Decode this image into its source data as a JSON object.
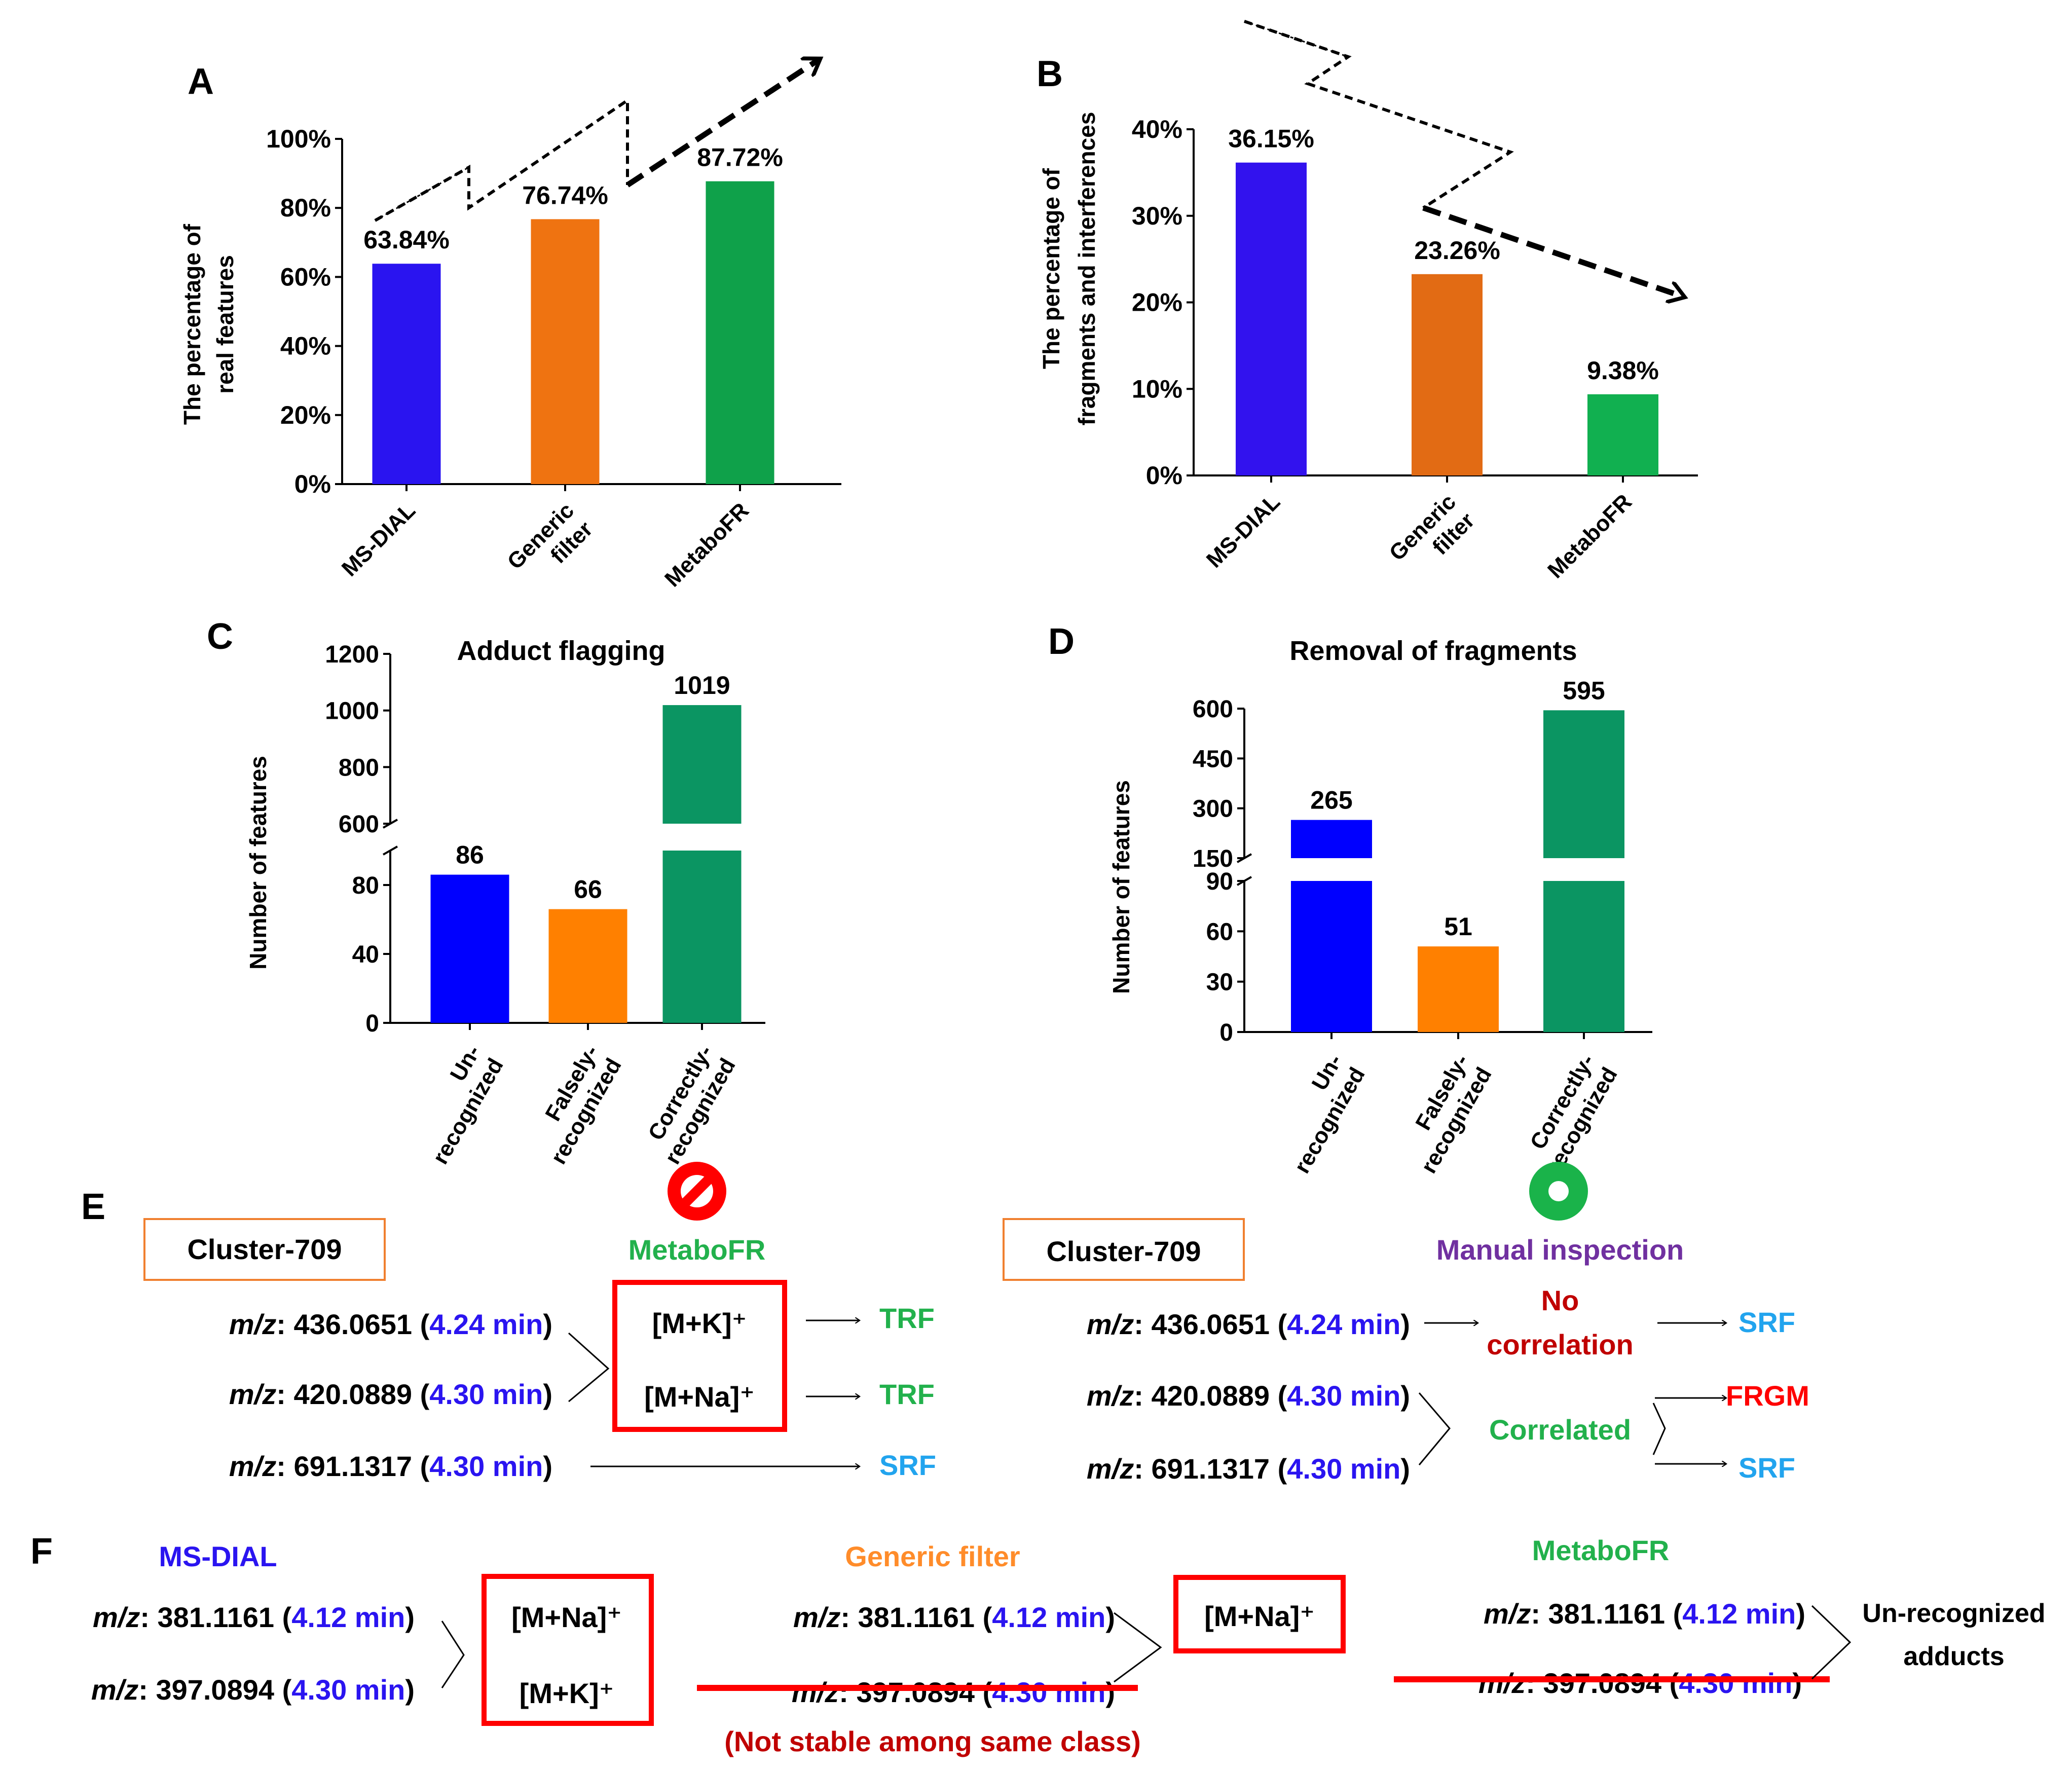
{
  "colors": {
    "blue": "#2a14f0",
    "orange": "#ef7311",
    "green": "#0fa14a",
    "dark_green": "#0b9562",
    "red": "#ff0000",
    "dark_red": "#c00000",
    "light_blue": "#22a4ee",
    "purple": "#7030a0",
    "text_green": "#22b14c",
    "orange_text": "#ff8c2a",
    "box_orange": "#f08030"
  },
  "chart_data": [
    {
      "panel": "A",
      "type": "bar",
      "ylabel_lines": [
        "The percentage of",
        "real features"
      ],
      "categories": [
        [
          "MS-DIAL"
        ],
        [
          "Generic",
          "filter"
        ],
        [
          "MetaboFR"
        ]
      ],
      "values": [
        63.84,
        76.74,
        87.72
      ],
      "value_labels": [
        "63.84%",
        "76.74%",
        "87.72%"
      ],
      "ylim": [
        0,
        100
      ],
      "yticks": [
        0,
        20,
        40,
        60,
        80,
        100
      ],
      "ytick_labels": [
        "0%",
        "20%",
        "40%",
        "60%",
        "80%",
        "100%"
      ],
      "legend": "none"
    },
    {
      "panel": "B",
      "type": "bar",
      "ylabel_lines": [
        "The percentage of",
        "fragments and interferences"
      ],
      "categories": [
        [
          "MS-DIAL"
        ],
        [
          "Generic",
          "filter"
        ],
        [
          "MetaboFR"
        ]
      ],
      "values": [
        36.15,
        23.26,
        9.38
      ],
      "value_labels": [
        "36.15%",
        "23.26%",
        "9.38%"
      ],
      "ylim": [
        0,
        40
      ],
      "yticks": [
        0,
        10,
        20,
        30,
        40
      ],
      "ytick_labels": [
        "0%",
        "10%",
        "20%",
        "30%",
        "40%"
      ],
      "legend": "none"
    },
    {
      "panel": "C",
      "type": "bar",
      "title": "Adduct flagging",
      "ylabel": "Number of features",
      "categories": [
        [
          "Un-",
          "recognized"
        ],
        [
          "Falsely-",
          "recognized"
        ],
        [
          "Correctly-",
          "recognized"
        ]
      ],
      "values": [
        86,
        66,
        1019
      ],
      "value_labels": [
        "86",
        "66",
        "1019"
      ],
      "broken_axis": {
        "lower": [
          0,
          100
        ],
        "upper": [
          600,
          1200
        ]
      },
      "yticks_lower": [
        0,
        40,
        80
      ],
      "yticks_upper": [
        600,
        800,
        1000,
        1200
      ],
      "legend": "none"
    },
    {
      "panel": "D",
      "type": "bar",
      "title": "Removal of fragments",
      "ylabel": "Number of features",
      "categories": [
        [
          "Un-",
          "recognized"
        ],
        [
          "Falsely-",
          "recognized"
        ],
        [
          "Correctly-",
          "recognized"
        ]
      ],
      "values": [
        265,
        51,
        595
      ],
      "value_labels": [
        "265",
        "51",
        "595"
      ],
      "broken_axis": {
        "lower": [
          0,
          90
        ],
        "upper": [
          150,
          600
        ]
      },
      "yticks_lower": [
        0,
        30,
        60,
        90
      ],
      "yticks_upper": [
        150,
        300,
        450,
        600
      ],
      "legend": "none"
    }
  ],
  "panel_e": {
    "letter": "E",
    "left": {
      "cluster": "Cluster-709",
      "method": "MetaboFR",
      "rows": [
        {
          "mz_label": "m/z",
          "mz": ": 436.0651",
          "time": "4.24 min",
          "result": "TRF"
        },
        {
          "mz_label": "m/z",
          "mz": ": 420.0889",
          "time": "4.30 min",
          "result": "TRF"
        },
        {
          "mz_label": "m/z",
          "mz": ": 691.1317",
          "time": "4.30 min",
          "result": "SRF"
        }
      ],
      "adducts": [
        "[M+K]⁺",
        "[M+Na]⁺"
      ]
    },
    "right": {
      "cluster": "Cluster-709",
      "method": "Manual inspection",
      "rows": [
        {
          "mz_label": "m/z",
          "mz": ": 436.0651",
          "time": "4.24 min"
        },
        {
          "mz_label": "m/z",
          "mz": ": 420.0889",
          "time": "4.30 min"
        },
        {
          "mz_label": "m/z",
          "mz": ": 691.1317",
          "time": "4.30 min"
        }
      ],
      "no_correlation": [
        "No",
        "correlation"
      ],
      "correlated": "Correlated",
      "results": [
        "SRF",
        "FRGM",
        "SRF"
      ]
    }
  },
  "panel_f": {
    "letter": "F",
    "ms_dial": {
      "title": "MS-DIAL",
      "rows": [
        {
          "mz_label": "m/z",
          "mz": ": 381.1161",
          "time": "4.12 min"
        },
        {
          "mz_label": "m/z",
          "mz": ": 397.0894",
          "time": "4.30 min"
        }
      ],
      "adducts": [
        "[M+Na]⁺",
        "[M+K]⁺"
      ]
    },
    "generic": {
      "title": "Generic filter",
      "rows": [
        {
          "mz_label": "m/z",
          "mz": ": 381.1161",
          "time": "4.12 min"
        },
        {
          "mz_label": "m/z",
          "mz": ": 397.0894",
          "time": "4.30 min"
        }
      ],
      "adduct": "[M+Na]⁺",
      "note": "(Not stable among same class)"
    },
    "metabofr": {
      "title": "MetaboFR",
      "rows": [
        {
          "mz_label": "m/z",
          "mz": ": 381.1161",
          "time": "4.12 min"
        },
        {
          "mz_label": "m/z",
          "mz": ": 397.0894",
          "time": "4.30 min"
        }
      ],
      "result_lines": [
        "Un-recognized",
        "adducts"
      ]
    }
  }
}
